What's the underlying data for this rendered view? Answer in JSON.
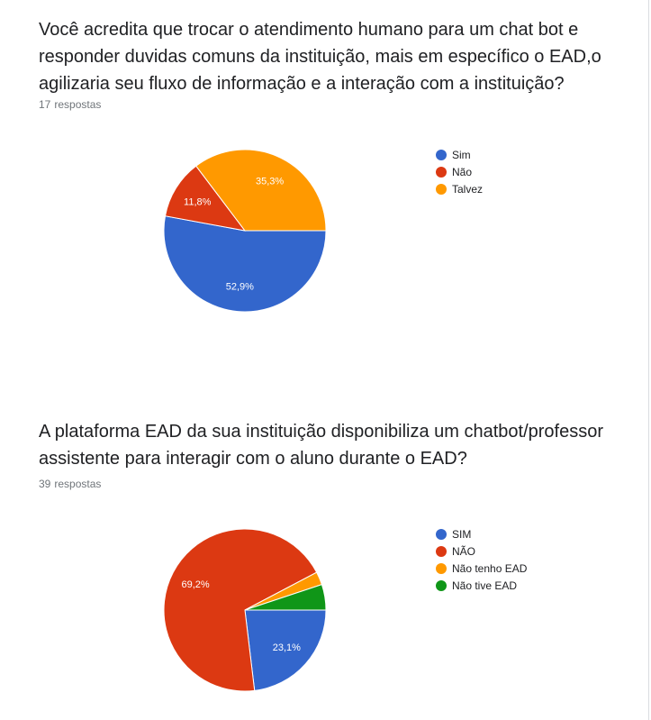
{
  "questions": [
    {
      "title": "Você acredita que trocar o atendimento humano para um chat bot e responder duvidas comuns da instituição, mais em específico o EAD,o agilizaria seu fluxo de informação e a interação com a instituição?",
      "response_count": "17",
      "response_word": "respostas"
    },
    {
      "title": "A plataforma EAD da sua instituição disponibiliza um chatbot/professor assistente para interagir com o aluno durante o EAD?",
      "response_count": "39",
      "response_word": "respostas"
    }
  ],
  "chart_data": [
    {
      "type": "pie",
      "categories": [
        "Sim",
        "Não",
        "Talvez"
      ],
      "values": [
        52.9,
        11.8,
        35.3
      ],
      "labels": [
        "52,9%",
        "11,8%",
        "35,3%"
      ],
      "colors": [
        "#3366cc",
        "#dc3912",
        "#ff9900"
      ],
      "legend_position": "right"
    },
    {
      "type": "pie",
      "categories": [
        "SIM",
        "NÃO",
        "Não tenho EAD",
        "Não tive EAD"
      ],
      "values": [
        23.1,
        69.2,
        2.6,
        5.1
      ],
      "labels": [
        "23,1%",
        "69,2%",
        "",
        ""
      ],
      "colors": [
        "#3366cc",
        "#dc3912",
        "#ff9900",
        "#109618"
      ],
      "legend_position": "right"
    }
  ]
}
